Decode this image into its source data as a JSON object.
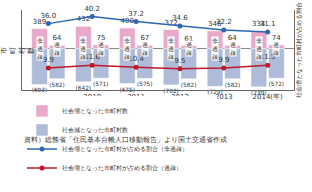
{
  "chart_data": {
    "type": "bar",
    "stacked": true,
    "categories": [
      null,
      "2010",
      "2011",
      "2012",
      "2013",
      "2014(年)"
    ],
    "groups": [
      "非過疎",
      "過疎"
    ],
    "y_label": "市町村数",
    "y2_label": "社会増となった市町村が占める割合",
    "ylim": [
      -800,
      750
    ],
    "y2lim": [
      -3,
      44
    ],
    "tick_labels": "x",
    "data_labels": true,
    "legend": "bottom",
    "source": "資料）総務省「住民基本台帳人口移動報告」より国土交通省作成",
    "series": [
      {
        "name": "社会増となった市町村数",
        "type": "bar",
        "group": "非過疎",
        "color": "#e9a9ca",
        "values": [
          389,
          432,
          400,
          372,
          346,
          334
        ],
        "value_labels": [
          "389",
          "432",
          "400",
          "372",
          "346",
          "334"
        ]
      },
      {
        "name": "社会増となった市町村数",
        "type": "bar",
        "group": "過疎",
        "color": "#e9a9ca",
        "values": [
          64,
          75,
          67,
          61,
          64,
          74
        ],
        "value_labels": [
          "64",
          "75",
          "67",
          "61",
          "64",
          "74"
        ]
      },
      {
        "name": "社会減となった市町村数",
        "type": "bar",
        "group": "非過疎",
        "color": "#aebbd9",
        "values": [
          -693,
          -642,
          -675,
          -702,
          -729,
          -739
        ],
        "value_labels": [
          "(693)",
          "(642)",
          "(675)",
          "(702)",
          "(729)",
          "(739)"
        ]
      },
      {
        "name": "社会減となった市町村数",
        "type": "bar",
        "group": "過疎",
        "color": "#aebbd9",
        "values": [
          -582,
          -571,
          -575,
          -582,
          -582,
          -572
        ],
        "value_labels": [
          "(582)",
          "(571)",
          "(575)",
          "(582)",
          "(582)",
          "(572)"
        ]
      },
      {
        "name": "社会増となった市町村が占める割合（非過疎）",
        "type": "line",
        "axis": "y2",
        "color": "#2c68b3",
        "marker": "circle",
        "values": [
          36.0,
          40.2,
          37.2,
          34.6,
          32.2,
          31.1
        ],
        "value_labels": [
          "36.0",
          "40.2",
          "37.2",
          "34.6",
          "32.2",
          "31.1"
        ]
      },
      {
        "name": "社会増となった市町村が占める割合（過疎）",
        "type": "line",
        "axis": "y2",
        "color": "#c0182a",
        "marker": "circle",
        "values": [
          9.9,
          11.6,
          10.4,
          9.5,
          9.9,
          11.5
        ],
        "value_labels": [
          "9.9",
          "11.6",
          "10.4",
          "9.5",
          "9.9",
          "11.5"
        ]
      }
    ]
  }
}
